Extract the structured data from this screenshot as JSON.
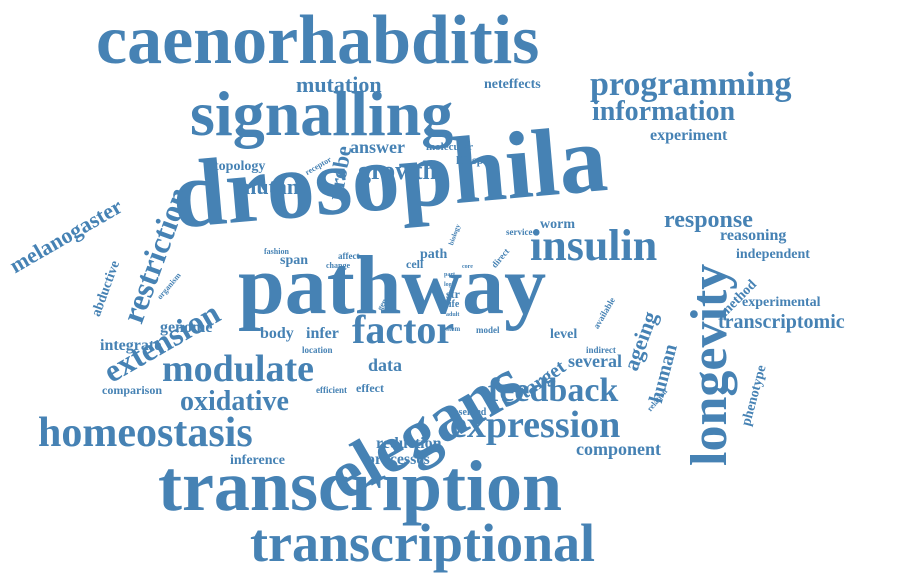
{
  "color": "#4682b4",
  "words": [
    "caenorhabditis",
    "signalling",
    "drosophila",
    "pathway",
    "elegans",
    "transcription",
    "transcriptional",
    "longevity",
    "homeostasis",
    "expression",
    "modulate",
    "insulin",
    "programming",
    "information",
    "restriction",
    "extension",
    "factor",
    "feedback",
    "oxidative",
    "growth",
    "melanogaster",
    "mutation",
    "mutant",
    "probe",
    "answer",
    "response",
    "ageing",
    "human",
    "target",
    "transcriptomic",
    "reasoning",
    "independent",
    "experiment",
    "experimental",
    "method",
    "phenotype",
    "component",
    "reduction",
    "processes",
    "inference",
    "integrate",
    "genome",
    "body",
    "infer",
    "data",
    "several",
    "level",
    "topology",
    "lifespan",
    "molecular",
    "neteffects",
    "worm",
    "service",
    "abductive",
    "comparison",
    "efficient",
    "effect",
    "observed",
    "span",
    "path",
    "cell",
    "str",
    "life",
    "model",
    "location",
    "system",
    "indirect",
    "relation",
    "available",
    "receptor",
    "organism",
    "fashion",
    "affect",
    "change",
    "biology",
    "direct",
    "genetic",
    "core",
    "logic",
    "adult",
    "part"
  ]
}
